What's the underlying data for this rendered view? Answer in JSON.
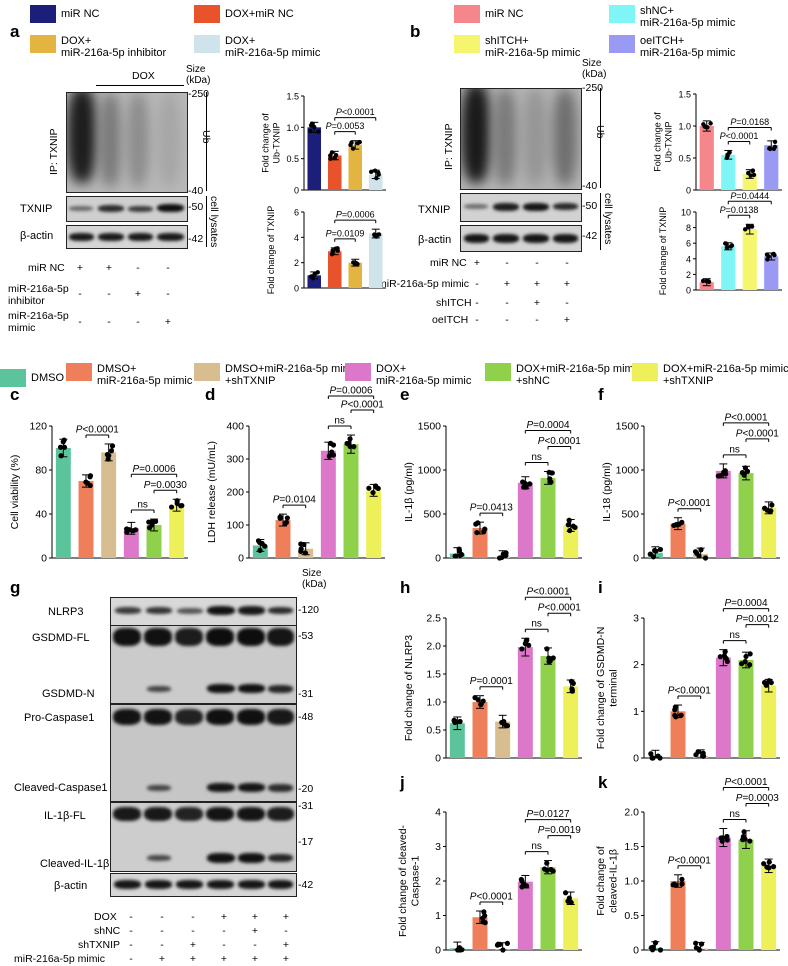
{
  "panels": {
    "a": "a",
    "b": "b",
    "c": "c",
    "d": "d",
    "e": "e",
    "f": "f",
    "g": "g",
    "h": "h",
    "i": "i",
    "j": "j",
    "k": "k"
  },
  "colors": {
    "miR_NC": "#1b1f7a",
    "DOX_miR_NC": "#e8532b",
    "DOX_inhibitor": "#e4b440",
    "DOX_mimic_a": "#cfe3ea",
    "b_miR_NC": "#f4868c",
    "b_shNC": "#7ff5f5",
    "b_shITCH": "#f5f56e",
    "b_oeITCH": "#9a9af5",
    "DMSO": "#5cc49a",
    "DMSO_mimic": "#ef7f5a",
    "DMSO_mimic_shTXNIP": "#d7bd8f",
    "DOX_mimic": "#dd77c9",
    "DOX_mimic_shNC": "#8fd14a",
    "DOX_mimic_shTXNIP": "#eef05a"
  },
  "legend_a": [
    {
      "text": "miR NC",
      "color": "#1b1f7a"
    },
    {
      "text": "DOX+miR NC",
      "color": "#e8532b"
    },
    {
      "text": "DOX+\nmiR-216a-5p inhibitor",
      "color": "#e4b440"
    },
    {
      "text": "DOX+\nmiR-216a-5p mimic",
      "color": "#cfe3ea"
    }
  ],
  "legend_b": [
    {
      "text": "miR NC",
      "color": "#f4868c"
    },
    {
      "text": "shNC+\nmiR-216a-5p mimic",
      "color": "#7ff5f5"
    },
    {
      "text": "shITCH+\nmiR-216a-5p mimic",
      "color": "#f5f56e"
    },
    {
      "text": "oeITCH+\nmiR-216a-5p mimic",
      "color": "#9a9af5"
    }
  ],
  "legend_cg": [
    {
      "text": "DMSO",
      "color": "#5cc49a"
    },
    {
      "text": "DMSO+\nmiR-216a-5p mimic",
      "color": "#ef7f5a"
    },
    {
      "text": "DMSO+miR-216a-5p mimic\n+shTXNIP",
      "color": "#d7bd8f"
    },
    {
      "text": "DOX+\nmiR-216a-5p mimic",
      "color": "#dd77c9"
    },
    {
      "text": "DOX+miR-216a-5p mimic\n+shNC",
      "color": "#8fd14a"
    },
    {
      "text": "DOX+miR-216a-5p mimic\n+shTXNIP",
      "color": "#eef05a"
    }
  ],
  "blot_a": {
    "dox_label": "DOX",
    "size_label": "Size\n(kDa)",
    "ip_label": "IP:  TXNIP",
    "ub_label": "Ub",
    "cell_lysates": "cell lysates",
    "marks": [
      "-250",
      "-40",
      "-50",
      "-42"
    ],
    "txnip": "TXNIP",
    "actin": "β-actin",
    "rows": [
      {
        "name": "miR NC",
        "signs": [
          "+",
          "+",
          "-",
          "-"
        ]
      },
      {
        "name": "miR-216a-5p\ninhibitor",
        "signs": [
          "-",
          "-",
          "+",
          "-"
        ]
      },
      {
        "name": "miR-216a-5p\nmimic",
        "signs": [
          "-",
          "-",
          "-",
          "+"
        ]
      }
    ]
  },
  "blot_b": {
    "size_label": "Size\n(kDa)",
    "ip_label": "IP:  TXNIP",
    "ub_label": "Ub",
    "cell_lysates": "cell lysates",
    "marks": [
      "-250",
      "-40",
      "-50",
      "-42"
    ],
    "txnip": "TXNIP",
    "actin": "β-actin",
    "rows": [
      {
        "name": "miR NC",
        "signs": [
          "+",
          "-",
          "-",
          "-"
        ]
      },
      {
        "name": "miR-216a-5p mimic",
        "signs": [
          "-",
          "+",
          "+",
          "+"
        ]
      },
      {
        "name": "shITCH",
        "signs": [
          "-",
          "-",
          "+",
          "-"
        ]
      },
      {
        "name": "oeITCH",
        "signs": [
          "-",
          "-",
          "-",
          "+"
        ]
      }
    ]
  },
  "blot_g": {
    "size_label": "Size\n(kDa)",
    "labels": [
      "NLRP3",
      "GSDMD-FL",
      "GSDMD-N",
      "Pro-Caspase1",
      "Cleaved-Caspase1",
      "IL-1β-FL",
      "Cleaved-IL-1β",
      "β-actin"
    ],
    "marks": [
      "-120",
      "-53",
      "-31",
      "-48",
      "-20",
      "-31",
      "-17",
      "-42"
    ],
    "rows": [
      {
        "name": "DOX",
        "signs": [
          "-",
          "-",
          "-",
          "+",
          "+",
          "+"
        ]
      },
      {
        "name": "shNC",
        "signs": [
          "-",
          "-",
          "-",
          "-",
          "+",
          "-"
        ]
      },
      {
        "name": "shTXNIP",
        "signs": [
          "-",
          "-",
          "+",
          "-",
          "-",
          "+"
        ]
      },
      {
        "name": "miR-216a-5p mimic",
        "signs": [
          "-",
          "+",
          "+",
          "+",
          "+",
          "+"
        ]
      }
    ]
  },
  "chart_data": [
    {
      "id": "a_ub",
      "type": "bar",
      "ylabel": "Fold change of\nUb-TXNIP",
      "ylim": [
        0,
        1.5
      ],
      "yticks": [
        "0",
        "0.5",
        "1.0",
        "1.5"
      ],
      "values": [
        1.0,
        0.55,
        0.72,
        0.25
      ],
      "colors": [
        "#1b1f7a",
        "#e8532b",
        "#e4b440",
        "#cfe3ea"
      ],
      "annotations": [
        {
          "text": "P=0.0053",
          "from": 1,
          "to": 2
        },
        {
          "text": "P<0.0001",
          "from": 1,
          "to": 3
        }
      ]
    },
    {
      "id": "a_txnip",
      "type": "bar",
      "ylabel": "Fold change of TXNIP",
      "ylim": [
        0,
        6
      ],
      "yticks": [
        "0",
        "2",
        "4",
        "6"
      ],
      "values": [
        1.0,
        2.9,
        2.0,
        4.3
      ],
      "colors": [
        "#1b1f7a",
        "#e8532b",
        "#e4b440",
        "#cfe3ea"
      ],
      "annotations": [
        {
          "text": "P=0.0109",
          "from": 1,
          "to": 2
        },
        {
          "text": "P=0.0006",
          "from": 1,
          "to": 3
        }
      ]
    },
    {
      "id": "b_ub",
      "type": "bar",
      "ylabel": "Fold change of\nUb-TXNIP",
      "ylim": [
        0,
        1.5
      ],
      "yticks": [
        "0",
        "0.5",
        "1.0",
        "1.5"
      ],
      "values": [
        1.0,
        0.55,
        0.25,
        0.7
      ],
      "colors": [
        "#f4868c",
        "#7ff5f5",
        "#f5f56e",
        "#9a9af5"
      ],
      "annotations": [
        {
          "text": "P<0.0001",
          "from": 1,
          "to": 2
        },
        {
          "text": "P=0.0168",
          "from": 1,
          "to": 3
        }
      ]
    },
    {
      "id": "b_txnip",
      "type": "bar",
      "ylabel": "Fold change of TXNIP",
      "ylim": [
        0,
        10
      ],
      "yticks": [
        "0",
        "2",
        "4",
        "6",
        "8",
        "10"
      ],
      "values": [
        1.0,
        5.6,
        7.8,
        4.3
      ],
      "colors": [
        "#f4868c",
        "#7ff5f5",
        "#f5f56e",
        "#9a9af5"
      ],
      "annotations": [
        {
          "text": "P=0.0138",
          "from": 1,
          "to": 2
        },
        {
          "text": "P=0.0444",
          "from": 1,
          "to": 3
        }
      ]
    },
    {
      "id": "c",
      "type": "bar",
      "ylabel": "Cell viability  (%)",
      "ylim": [
        0,
        120
      ],
      "yticks": [
        "0",
        "40",
        "80",
        "120"
      ],
      "values": [
        100,
        70,
        96,
        27,
        30,
        48
      ],
      "colors": [
        "#5cc49a",
        "#ef7f5a",
        "#d7bd8f",
        "#dd77c9",
        "#8fd14a",
        "#eef05a"
      ],
      "annotations": [
        {
          "text": "P<0.0001",
          "from": 1,
          "to": 2
        },
        {
          "text": "ns",
          "from": 3,
          "to": 4
        },
        {
          "text": "P=0.0030",
          "from": 4,
          "to": 5
        },
        {
          "text": "P=0.0006",
          "from": 3,
          "to": 5
        }
      ]
    },
    {
      "id": "d",
      "type": "bar",
      "ylabel": "LDH release (mU/mL)",
      "ylim": [
        0,
        400
      ],
      "yticks": [
        "0",
        "100",
        "200",
        "300",
        "400"
      ],
      "values": [
        38,
        115,
        28,
        325,
        345,
        205
      ],
      "colors": [
        "#5cc49a",
        "#ef7f5a",
        "#d7bd8f",
        "#dd77c9",
        "#8fd14a",
        "#eef05a"
      ],
      "annotations": [
        {
          "text": "P=0.0104",
          "from": 1,
          "to": 2
        },
        {
          "text": "ns",
          "from": 3,
          "to": 4
        },
        {
          "text": "P<0.0001",
          "from": 4,
          "to": 5
        },
        {
          "text": "P=0.0006",
          "from": 3,
          "to": 5
        }
      ]
    },
    {
      "id": "e",
      "type": "bar",
      "ylabel": "IL-1β (pg/ml)",
      "ylim": [
        0,
        1500
      ],
      "yticks": [
        "0",
        "500",
        "1000",
        "1500"
      ],
      "values": [
        50,
        340,
        15,
        855,
        910,
        370
      ],
      "colors": [
        "#5cc49a",
        "#ef7f5a",
        "#d7bd8f",
        "#dd77c9",
        "#8fd14a",
        "#eef05a"
      ],
      "annotations": [
        {
          "text": "P=0.0413",
          "from": 1,
          "to": 2
        },
        {
          "text": "ns",
          "from": 3,
          "to": 4
        },
        {
          "text": "P<0.0001",
          "from": 4,
          "to": 5
        },
        {
          "text": "P=0.0004",
          "from": 3,
          "to": 5
        }
      ]
    },
    {
      "id": "f",
      "type": "bar",
      "ylabel": "IL-18 (pg/ml)",
      "ylim": [
        0,
        1500
      ],
      "yticks": [
        "0",
        "500",
        "1000",
        "1500"
      ],
      "values": [
        60,
        390,
        45,
        990,
        965,
        570
      ],
      "colors": [
        "#5cc49a",
        "#ef7f5a",
        "#d7bd8f",
        "#dd77c9",
        "#8fd14a",
        "#eef05a"
      ],
      "annotations": [
        {
          "text": "P<0.0001",
          "from": 1,
          "to": 2
        },
        {
          "text": "ns",
          "from": 3,
          "to": 4
        },
        {
          "text": "P<0.0001",
          "from": 4,
          "to": 5
        },
        {
          "text": "P<0.0001",
          "from": 3,
          "to": 5
        }
      ]
    },
    {
      "id": "h",
      "type": "bar",
      "ylabel": "Fold change of  NLRP3",
      "ylim": [
        0,
        2.5
      ],
      "yticks": [
        "0",
        "0.5",
        "1.0",
        "1.5",
        "2.0",
        "2.5"
      ],
      "values": [
        0.62,
        1.0,
        0.65,
        1.98,
        1.82,
        1.28
      ],
      "colors": [
        "#5cc49a",
        "#ef7f5a",
        "#d7bd8f",
        "#dd77c9",
        "#8fd14a",
        "#eef05a"
      ],
      "annotations": [
        {
          "text": "P=0.0001",
          "from": 1,
          "to": 2
        },
        {
          "text": "ns",
          "from": 3,
          "to": 4
        },
        {
          "text": "P<0.0001",
          "from": 4,
          "to": 5
        },
        {
          "text": "P<0.0001",
          "from": 3,
          "to": 5
        }
      ]
    },
    {
      "id": "i",
      "type": "bar",
      "ylabel": "Fold change of  GSDMD-N\nterminal",
      "ylim": [
        0,
        3
      ],
      "yticks": [
        "0",
        "1",
        "2",
        "3"
      ],
      "values": [
        0.03,
        1.0,
        0.04,
        2.15,
        2.1,
        1.55
      ],
      "colors": [
        "#5cc49a",
        "#ef7f5a",
        "#d7bd8f",
        "#dd77c9",
        "#8fd14a",
        "#eef05a"
      ],
      "annotations": [
        {
          "text": "P<0.0001",
          "from": 1,
          "to": 2
        },
        {
          "text": "ns",
          "from": 3,
          "to": 4
        },
        {
          "text": "P=0.0012",
          "from": 4,
          "to": 5
        },
        {
          "text": "P=0.0004",
          "from": 3,
          "to": 5
        }
      ]
    },
    {
      "id": "j",
      "type": "bar",
      "ylabel": "Fold change of cleaved-\nCaspase-1",
      "ylim": [
        0,
        4
      ],
      "yticks": [
        "0",
        "1",
        "2",
        "3",
        "4"
      ],
      "values": [
        0.05,
        0.95,
        0.03,
        1.98,
        2.4,
        1.5
      ],
      "colors": [
        "#5cc49a",
        "#ef7f5a",
        "#d7bd8f",
        "#dd77c9",
        "#8fd14a",
        "#eef05a"
      ],
      "annotations": [
        {
          "text": "P<0.0001",
          "from": 1,
          "to": 2
        },
        {
          "text": "ns",
          "from": 3,
          "to": 4
        },
        {
          "text": "P=0.0019",
          "from": 4,
          "to": 5
        },
        {
          "text": "P=0.0127",
          "from": 3,
          "to": 5
        }
      ]
    },
    {
      "id": "k",
      "type": "bar",
      "ylabel": "Fold change of\ncleaved-IL-1β",
      "ylim": [
        0,
        2.0
      ],
      "yticks": [
        "0",
        "0.5",
        "1.0",
        "1.5",
        "2.0"
      ],
      "values": [
        0.03,
        1.0,
        0.02,
        1.63,
        1.6,
        1.22
      ],
      "colors": [
        "#5cc49a",
        "#ef7f5a",
        "#d7bd8f",
        "#dd77c9",
        "#8fd14a",
        "#eef05a"
      ],
      "annotations": [
        {
          "text": "P<0.0001",
          "from": 1,
          "to": 2
        },
        {
          "text": "ns",
          "from": 3,
          "to": 4
        },
        {
          "text": "P=0.0003",
          "from": 4,
          "to": 5
        },
        {
          "text": "P<0.0001",
          "from": 3,
          "to": 5
        }
      ]
    }
  ]
}
